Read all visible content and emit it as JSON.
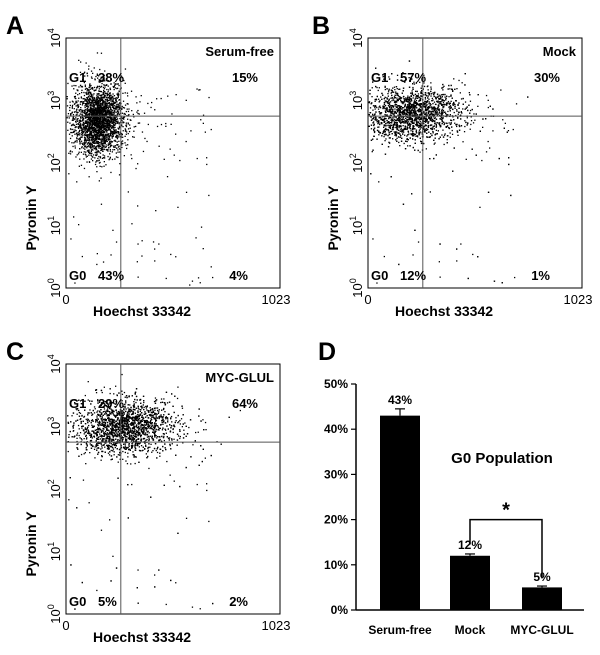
{
  "panels": [
    {
      "letter": "A",
      "condition": "Serum-free",
      "ylabel": "Pyronin Y",
      "xlabel": "Hoechst 33342",
      "xtick_min": "0",
      "xtick_max": "1023",
      "yticks": [
        {
          "base": "10",
          "exp": "0"
        },
        {
          "base": "10",
          "exp": "1"
        },
        {
          "base": "10",
          "exp": "2"
        },
        {
          "base": "10",
          "exp": "3"
        },
        {
          "base": "10",
          "exp": "4"
        }
      ],
      "quadrants": {
        "g1_label": "G1",
        "g1_pct": "38%",
        "ur_pct": "15%",
        "g0_label": "G0",
        "g0_pct": "43%",
        "lr_pct": "4%"
      }
    },
    {
      "letter": "B",
      "condition": "Mock",
      "ylabel": "Pyronin Y",
      "xlabel": "Hoechst 33342",
      "xtick_min": "0",
      "xtick_max": "1023",
      "yticks": [
        {
          "base": "10",
          "exp": "0"
        },
        {
          "base": "10",
          "exp": "1"
        },
        {
          "base": "10",
          "exp": "2"
        },
        {
          "base": "10",
          "exp": "3"
        },
        {
          "base": "10",
          "exp": "4"
        }
      ],
      "quadrants": {
        "g1_label": "G1",
        "g1_pct": "57%",
        "ur_pct": "30%",
        "g0_label": "G0",
        "g0_pct": "12%",
        "lr_pct": "1%"
      }
    },
    {
      "letter": "C",
      "condition": "MYC-GLUL",
      "ylabel": "Pyronin Y",
      "xlabel": "Hoechst 33342",
      "xtick_min": "0",
      "xtick_max": "1023",
      "yticks": [
        {
          "base": "10",
          "exp": "0"
        },
        {
          "base": "10",
          "exp": "1"
        },
        {
          "base": "10",
          "exp": "2"
        },
        {
          "base": "10",
          "exp": "3"
        },
        {
          "base": "10",
          "exp": "4"
        }
      ],
      "quadrants": {
        "g1_label": "G1",
        "g1_pct": "29%",
        "ur_pct": "64%",
        "g0_label": "G0",
        "g0_pct": "5%",
        "lr_pct": "2%"
      }
    }
  ],
  "bar_panel": {
    "letter": "D"
  },
  "colors": {
    "ink": "#000000",
    "gate": "#555555"
  },
  "chart_data": [
    {
      "type": "scatter",
      "condition": "Serum-free",
      "xlim": [
        0,
        1023
      ],
      "ylim_log10": [
        0,
        4
      ],
      "gate": {
        "x": 262,
        "y_log10": 2.75
      },
      "quadrant_percent": {
        "G1": 38,
        "upper_right": 15,
        "G0": 43,
        "lower_right": 4
      },
      "cloud": {
        "center_x": 150,
        "center_y_log10": 2.7,
        "spread": "moderate"
      }
    },
    {
      "type": "scatter",
      "condition": "Mock",
      "xlim": [
        0,
        1023
      ],
      "ylim_log10": [
        0,
        4
      ],
      "gate": {
        "x": 262,
        "y_log10": 2.75
      },
      "quadrant_percent": {
        "G1": 57,
        "upper_right": 30,
        "G0": 12,
        "lower_right": 1
      },
      "cloud": {
        "center_x": 200,
        "center_y_log10": 2.8,
        "spread": "wide horizontal"
      }
    },
    {
      "type": "scatter",
      "condition": "MYC-GLUL",
      "xlim": [
        0,
        1023
      ],
      "ylim_log10": [
        0,
        4
      ],
      "gate": {
        "x": 262,
        "y_log10": 2.75
      },
      "quadrant_percent": {
        "G1": 29,
        "upper_right": 64,
        "G0": 5,
        "lower_right": 2
      },
      "cloud": {
        "center_x": 270,
        "center_y_log10": 3.0,
        "spread": "wide horizontal"
      }
    },
    {
      "type": "bar",
      "title": "G0 Population",
      "categories": [
        "Serum-free",
        "Mock",
        "MYC-GLUL"
      ],
      "values": [
        43,
        12,
        5
      ],
      "data_labels": [
        "43%",
        "12%",
        "5%"
      ],
      "errors": [
        1.5,
        0.4,
        0.3
      ],
      "ylim": [
        0,
        50
      ],
      "yticks": [
        0,
        10,
        20,
        30,
        40,
        50
      ],
      "ytick_labels": [
        "0%",
        "10%",
        "20%",
        "30%",
        "40%",
        "50%"
      ],
      "significance": {
        "between": [
          "Mock",
          "MYC-GLUL"
        ],
        "label": "*"
      }
    }
  ]
}
